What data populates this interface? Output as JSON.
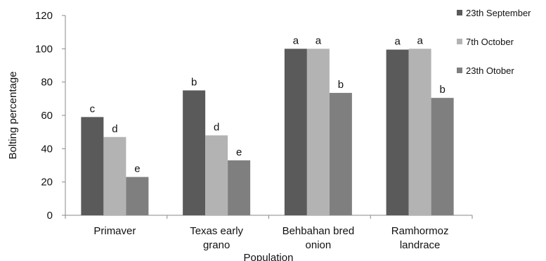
{
  "chart_data": {
    "type": "bar",
    "categories": [
      [
        "Primaver"
      ],
      [
        "Texas early",
        "grano"
      ],
      [
        "Behbahan bred",
        "onion"
      ],
      [
        "Ramhormoz",
        "landrace"
      ]
    ],
    "series": [
      {
        "name": "23th September",
        "color": "#5a5a5a",
        "values": [
          59,
          75,
          100,
          99.5
        ],
        "labels": [
          "c",
          "b",
          "a",
          "a"
        ]
      },
      {
        "name": "7th October",
        "color": "#b3b3b3",
        "values": [
          47,
          48,
          100,
          100
        ],
        "labels": [
          "d",
          "d",
          "a",
          "a"
        ]
      },
      {
        "name": "23th Otober",
        "color": "#7f7f7f",
        "values": [
          23,
          33,
          73.5,
          70.5
        ],
        "labels": [
          "e",
          "e",
          "b",
          "b"
        ]
      }
    ],
    "xlabel": "Population",
    "ylabel": "Bolting percentage",
    "ylim": [
      0,
      120
    ],
    "yticks": [
      0,
      20,
      40,
      60,
      80,
      100,
      120
    ],
    "grid": false,
    "legend_position": "right"
  }
}
